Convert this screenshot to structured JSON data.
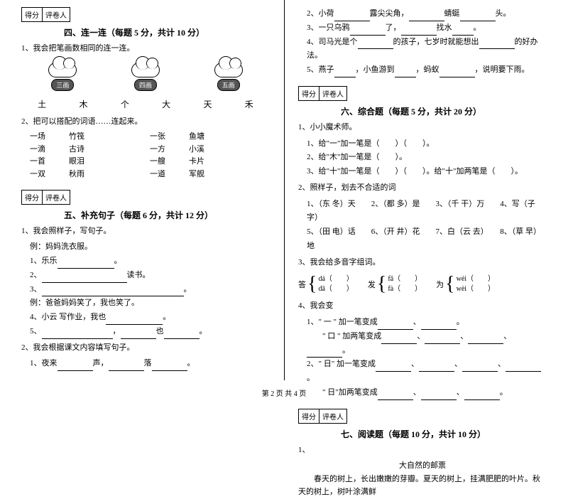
{
  "scoreLabels": {
    "score": "得分",
    "grader": "评卷人"
  },
  "section4": {
    "title": "四、连一连（每题 5 分，共计 10 分）",
    "q1": "1、我会把笔画数相同的连一连。",
    "labels": [
      "三画",
      "四画",
      "五画"
    ],
    "chars": [
      "土",
      "木",
      "个",
      "大",
      "天",
      "禾"
    ],
    "q2": "2、把可以搭配的词语……连起来。",
    "leftPairs": [
      [
        "一场",
        "竹筏"
      ],
      [
        "一滴",
        "古诗"
      ],
      [
        "一首",
        "眼泪"
      ],
      [
        "一双",
        "秋雨"
      ]
    ],
    "rightPairs": [
      [
        "一张",
        "鱼塘"
      ],
      [
        "一方",
        "小溪"
      ],
      [
        "一艘",
        "卡片"
      ],
      [
        "一道",
        "军舰"
      ]
    ]
  },
  "section5": {
    "title": "五、补充句子（每题 6 分，共计 12 分）",
    "q1": "1、我会照样子，写句子。",
    "ex1": "例：妈妈洗衣服。",
    "i1": "1、乐乐",
    "i2": "2、",
    "i2end": "读书。",
    "i3": "3、",
    "ex2": "例：爸爸妈妈笑了，我也笑了。",
    "i4": "4、小云 写作业，我也",
    "i5": "5、",
    "i5mid": "，",
    "i5end": "也",
    "q2": "2、我会根据课文内容填写句子。",
    "q2_1": "1、夜来",
    "q2_1mid": "声，",
    "q2_1end": "落"
  },
  "rightTop": {
    "r2": "2、小荷",
    "r2a": "露尖尖角，",
    "r2b": "蜻蜓",
    "r2c": "头。",
    "r3": "3、一只乌鸦",
    "r3a": "了，",
    "r3b": "找水",
    "r3c": "。",
    "r4": "4、司马光是个",
    "r4a": "的孩子，七岁时就能想出",
    "r4b": "的好办法。",
    "r5": "5、燕子",
    "r5a": "，小鱼游到",
    "r5b": "，蚂蚁",
    "r5c": "，说明要下雨。"
  },
  "section6": {
    "title": "六、综合题（每题 5 分，共计 20 分）",
    "q1": "1、小小魔术师。",
    "q1_1": "1、给\"一\"加一笔是（　　）（　　）。",
    "q1_2": "2、给\"木\"加一笔是（　　）。",
    "q1_3": "3、给\"十\"加一笔是（　　）（　　）。给\"十\"加两笔是（　　）。",
    "q2": "2、照样子，划去不合适的词",
    "q2row1": "1、（东 冬）天　　2、（都 多）是　　3、（千 干）万　　4、写（子 字）",
    "q2row2": "5、（田 电）话　　6、（开 井）花　　7、白（云 去）　　8、（草 早）地",
    "q3": "3、我会给多音字组词。",
    "pinyin": {
      "da": "答",
      "fa": "发",
      "wei": "为",
      "da1": "dá（　　）",
      "da2": "dā（　　）",
      "fa1": "fǎ（　　）",
      "fa2": "fà（　　）",
      "wei1": "wéi（　　）",
      "wei2": "wèi（　　）"
    },
    "q4": "4、我会变",
    "q4_1": "1、\" 一 \" 加一笔变成",
    "q4_2": "\" 口 \" 加两笔变成",
    "q4_3": "2、\" 日\" 加一笔变成",
    "q4_4": "\" 日\"加两笔变成"
  },
  "section7": {
    "title": "七、阅读题（每题 10 分，共计 10 分）",
    "q1": "1、",
    "storyTitle": "大自然的邮票",
    "story": "春天的树上，长出嫩嫩的芽瓣。夏天的树上，挂满肥肥的叶片。秋天的树上，树叶涂满鲜"
  },
  "footer": "第 2 页 共 4 页"
}
